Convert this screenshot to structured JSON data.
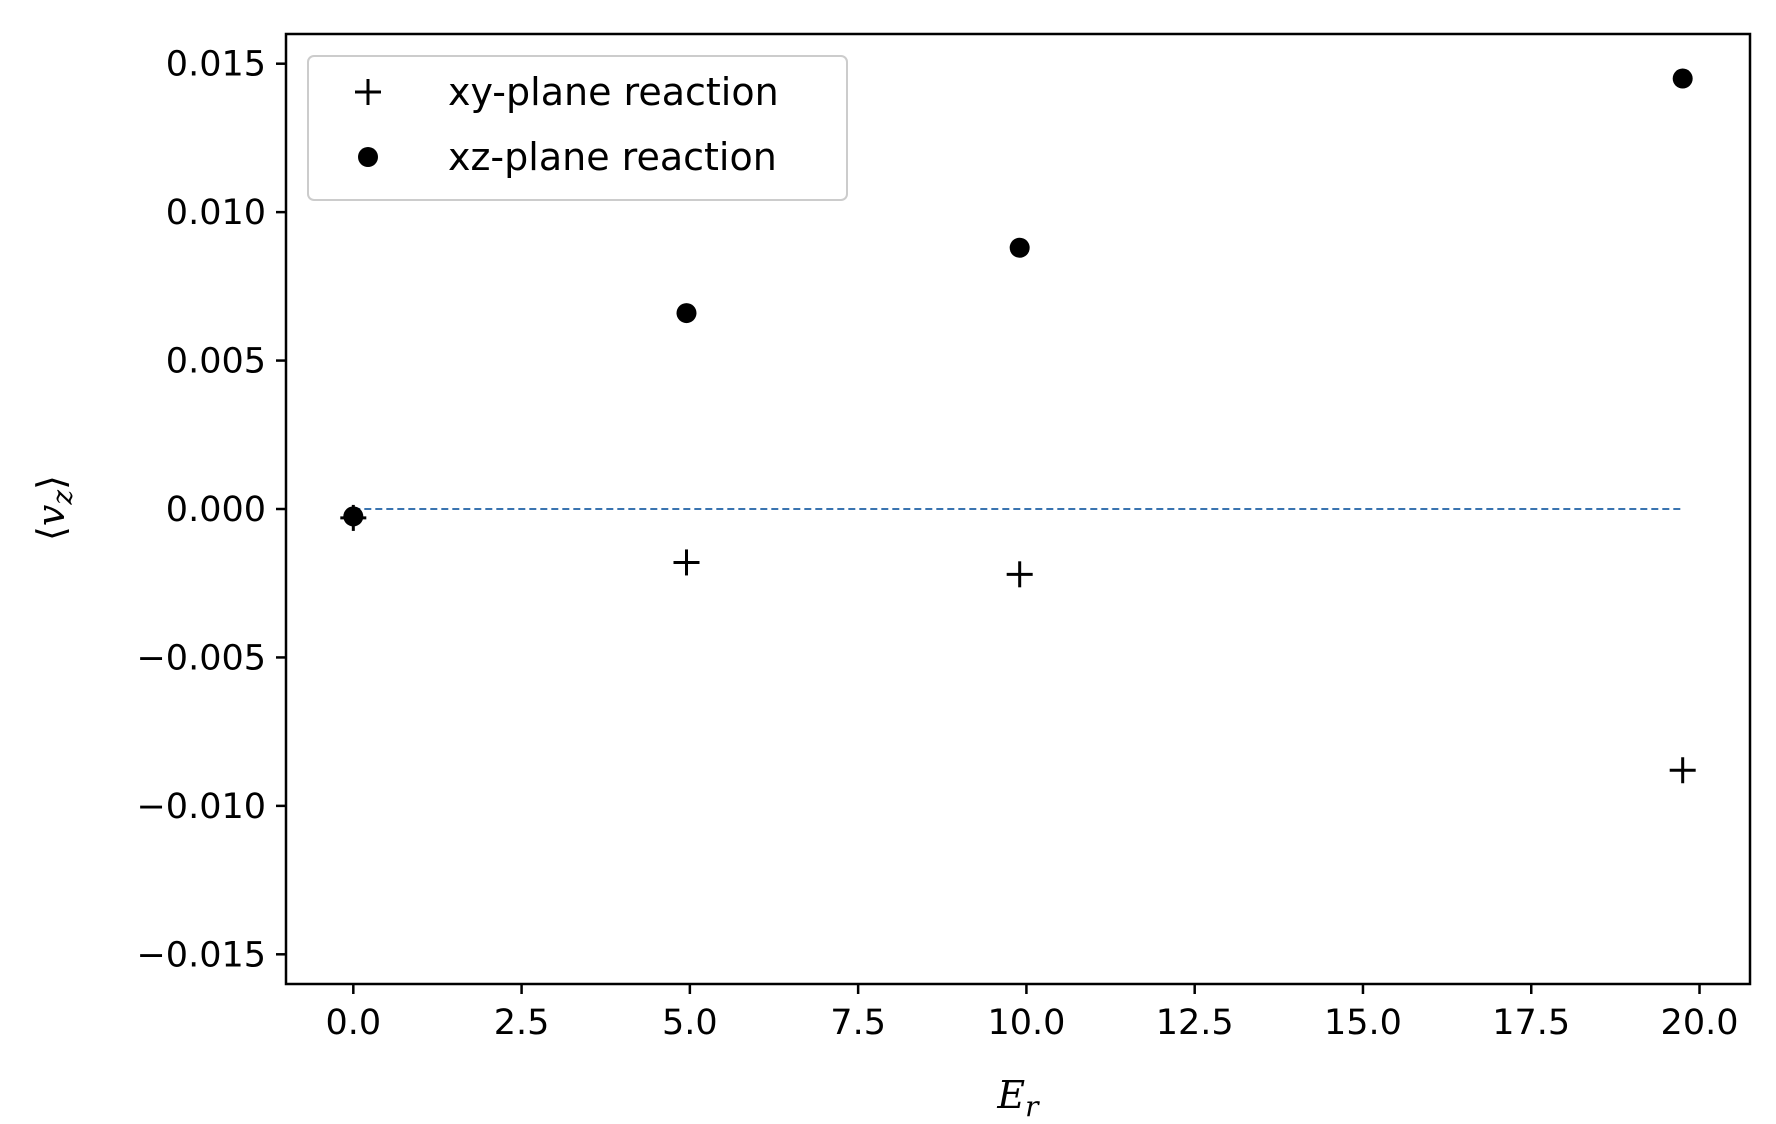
{
  "chart_data": {
    "type": "scatter",
    "title": "",
    "xlabel": "E",
    "xlabel_sub": "r",
    "ylabel": "v",
    "ylabel_sub": "z",
    "xlim": [
      -1.0,
      20.75
    ],
    "ylim": [
      -0.016,
      0.016
    ],
    "x_ticks": [
      0.0,
      2.5,
      5.0,
      7.5,
      10.0,
      12.5,
      15.0,
      17.5,
      20.0
    ],
    "x_tick_labels": [
      "0.0",
      "2.5",
      "5.0",
      "7.5",
      "10.0",
      "12.5",
      "15.0",
      "17.5",
      "20.0"
    ],
    "y_ticks": [
      0.015,
      0.01,
      0.005,
      0.0,
      -0.005,
      -0.01,
      -0.015
    ],
    "y_tick_labels": [
      "0.015",
      "0.010",
      "0.005",
      "0.000",
      "−0.005",
      "−0.010",
      "−0.015"
    ],
    "grid": false,
    "legend_position": "top-left",
    "reference_line": {
      "y": 0.0,
      "x_range": [
        0.0,
        19.75
      ],
      "style": "dashed",
      "color": "#3a74b0"
    },
    "series": [
      {
        "name": "xy-plane reaction",
        "marker": "plus",
        "color": "#000000",
        "x": [
          0.0,
          4.95,
          9.9,
          19.75
        ],
        "y": [
          -0.0003,
          -0.0018,
          -0.0022,
          -0.0088
        ]
      },
      {
        "name": "xz-plane reaction",
        "marker": "circle",
        "color": "#000000",
        "x": [
          0.0,
          4.95,
          9.9,
          19.75
        ],
        "y": [
          -0.00025,
          0.0066,
          0.0088,
          0.0145
        ]
      }
    ]
  }
}
